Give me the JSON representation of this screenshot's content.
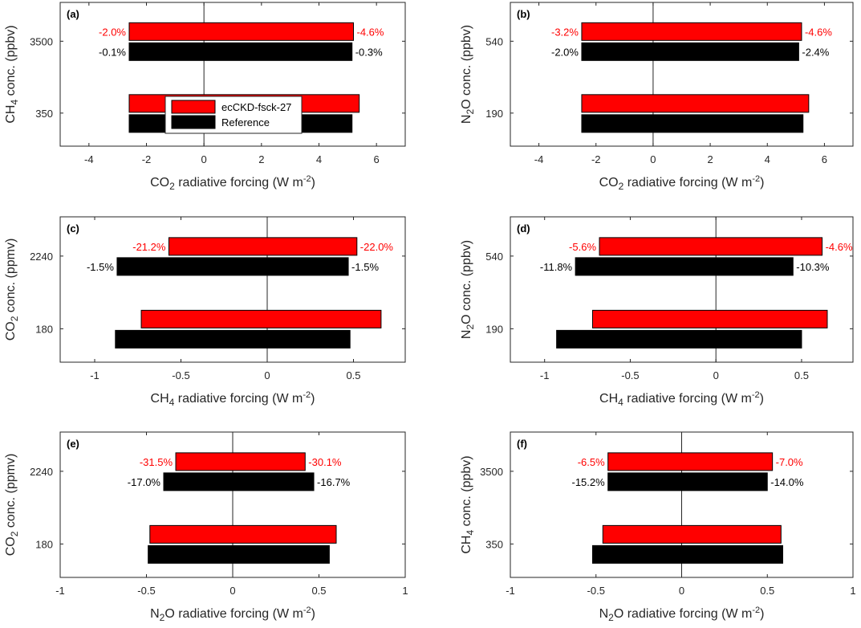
{
  "colors": {
    "ecckd": "#ff0000",
    "reference": "#000000",
    "pct_ecckd": "#ff0000",
    "pct_reference": "#000000"
  },
  "legend": {
    "entries": [
      "ecCKD-fsck-27",
      "Reference"
    ],
    "location": "panel-a-center"
  },
  "chart_data": [
    {
      "type": "bar",
      "orientation": "horizontal",
      "panel": "(a)",
      "xlabel": {
        "base": "CO",
        "sub": "2",
        "rest": " radiative forcing (W m",
        "sup": "-2",
        "end": ")"
      },
      "ylabel": {
        "base": "CH",
        "sub": "4",
        "rest": " conc. (ppbv)"
      },
      "xlim": [
        -5,
        7
      ],
      "xticks": [
        -4,
        -2,
        0,
        2,
        4,
        6
      ],
      "xtick_labels": [
        "-4",
        "-2",
        "0",
        "2",
        "4",
        "6"
      ],
      "categories": [
        "3500",
        "350"
      ],
      "series": [
        {
          "name": "ecCKD-fsck-27",
          "neg": [
            -2.6,
            -2.6
          ],
          "pos": [
            5.2,
            5.4
          ]
        },
        {
          "name": "Reference",
          "neg": [
            -2.6,
            -2.6
          ],
          "pos": [
            5.15,
            5.15
          ]
        }
      ],
      "annotations": [
        {
          "category": "3500",
          "series": "ecCKD-fsck-27",
          "left": "-2.0%",
          "right": "-4.6%"
        },
        {
          "category": "3500",
          "series": "Reference",
          "left": "-0.1%",
          "right": "-0.3%"
        }
      ]
    },
    {
      "type": "bar",
      "orientation": "horizontal",
      "panel": "(b)",
      "xlabel": {
        "base": "CO",
        "sub": "2",
        "rest": " radiative forcing (W m",
        "sup": "-2",
        "end": ")"
      },
      "ylabel": {
        "base": "N",
        "sub": "2",
        "rest": "O conc. (ppbv)"
      },
      "xlim": [
        -5,
        7
      ],
      "xticks": [
        -4,
        -2,
        0,
        2,
        4,
        6
      ],
      "xtick_labels": [
        "-4",
        "-2",
        "0",
        "2",
        "4",
        "6"
      ],
      "categories": [
        "540",
        "190"
      ],
      "series": [
        {
          "name": "ecCKD-fsck-27",
          "neg": [
            -2.5,
            -2.5
          ],
          "pos": [
            5.2,
            5.45
          ]
        },
        {
          "name": "Reference",
          "neg": [
            -2.5,
            -2.5
          ],
          "pos": [
            5.1,
            5.25
          ]
        }
      ],
      "annotations": [
        {
          "category": "540",
          "series": "ecCKD-fsck-27",
          "left": "-3.2%",
          "right": "-4.6%"
        },
        {
          "category": "540",
          "series": "Reference",
          "left": "-2.0%",
          "right": "-2.4%"
        }
      ]
    },
    {
      "type": "bar",
      "orientation": "horizontal",
      "panel": "(c)",
      "xlabel": {
        "base": "CH",
        "sub": "4",
        "rest": " radiative forcing (W m",
        "sup": "-2",
        "end": ")"
      },
      "ylabel": {
        "base": "CO",
        "sub": "2",
        "rest": " conc. (ppmv)"
      },
      "xlim": [
        -1.2,
        0.8
      ],
      "xticks": [
        -1,
        -0.5,
        0,
        0.5
      ],
      "xtick_labels": [
        "-1",
        "-0.5",
        "0",
        "0.5"
      ],
      "categories": [
        "2240",
        "180"
      ],
      "series": [
        {
          "name": "ecCKD-fsck-27",
          "neg": [
            -0.57,
            -0.73
          ],
          "pos": [
            0.52,
            0.66
          ]
        },
        {
          "name": "Reference",
          "neg": [
            -0.87,
            -0.88
          ],
          "pos": [
            0.47,
            0.48
          ]
        }
      ],
      "annotations": [
        {
          "category": "2240",
          "series": "ecCKD-fsck-27",
          "left": "-21.2%",
          "right": "-22.0%"
        },
        {
          "category": "2240",
          "series": "Reference",
          "left": "-1.5%",
          "right": "-1.5%"
        }
      ]
    },
    {
      "type": "bar",
      "orientation": "horizontal",
      "panel": "(d)",
      "xlabel": {
        "base": "CH",
        "sub": "4",
        "rest": " radiative forcing (W m",
        "sup": "-2",
        "end": ")"
      },
      "ylabel": {
        "base": "N",
        "sub": "2",
        "rest": "O conc. (ppbv)"
      },
      "xlim": [
        -1.2,
        0.8
      ],
      "xticks": [
        -1,
        -0.5,
        0,
        0.5
      ],
      "xtick_labels": [
        "-1",
        "-0.5",
        "0",
        "0.5"
      ],
      "categories": [
        "540",
        "190"
      ],
      "series": [
        {
          "name": "ecCKD-fsck-27",
          "neg": [
            -0.68,
            -0.72
          ],
          "pos": [
            0.62,
            0.65
          ]
        },
        {
          "name": "Reference",
          "neg": [
            -0.82,
            -0.93
          ],
          "pos": [
            0.45,
            0.5
          ]
        }
      ],
      "annotations": [
        {
          "category": "540",
          "series": "ecCKD-fsck-27",
          "left": "-5.6%",
          "right": "-4.6%"
        },
        {
          "category": "540",
          "series": "Reference",
          "left": "-11.8%",
          "right": "-10.3%"
        }
      ]
    },
    {
      "type": "bar",
      "orientation": "horizontal",
      "panel": "(e)",
      "xlabel": {
        "base": "N",
        "sub": "2",
        "rest": "O radiative forcing (W m",
        "sup": "-2",
        "end": ")"
      },
      "ylabel": {
        "base": "CO",
        "sub": "2",
        "rest": " conc. (ppmv)"
      },
      "xlim": [
        -1,
        1
      ],
      "xticks": [
        -1,
        -0.5,
        0,
        0.5,
        1
      ],
      "xtick_labels": [
        "-1",
        "-0.5",
        "0",
        "0.5",
        "1"
      ],
      "categories": [
        "2240",
        "180"
      ],
      "series": [
        {
          "name": "ecCKD-fsck-27",
          "neg": [
            -0.33,
            -0.48
          ],
          "pos": [
            0.42,
            0.6
          ]
        },
        {
          "name": "Reference",
          "neg": [
            -0.4,
            -0.49
          ],
          "pos": [
            0.47,
            0.56
          ]
        }
      ],
      "annotations": [
        {
          "category": "2240",
          "series": "ecCKD-fsck-27",
          "left": "-31.5%",
          "right": "-30.1%"
        },
        {
          "category": "2240",
          "series": "Reference",
          "left": "-17.0%",
          "right": "-16.7%"
        }
      ]
    },
    {
      "type": "bar",
      "orientation": "horizontal",
      "panel": "(f)",
      "xlabel": {
        "base": "N",
        "sub": "2",
        "rest": "O radiative forcing (W m",
        "sup": "-2",
        "end": ")"
      },
      "ylabel": {
        "base": "CH",
        "sub": "4",
        "rest": " conc. (ppbv)"
      },
      "xlim": [
        -1,
        1
      ],
      "xticks": [
        -1,
        -0.5,
        0,
        0.5,
        1
      ],
      "xtick_labels": [
        "-1",
        "-0.5",
        "0",
        "0.5",
        "1"
      ],
      "categories": [
        "3500",
        "350"
      ],
      "series": [
        {
          "name": "ecCKD-fsck-27",
          "neg": [
            -0.43,
            -0.46
          ],
          "pos": [
            0.53,
            0.58
          ]
        },
        {
          "name": "Reference",
          "neg": [
            -0.43,
            -0.52
          ],
          "pos": [
            0.5,
            0.59
          ]
        }
      ],
      "annotations": [
        {
          "category": "3500",
          "series": "ecCKD-fsck-27",
          "left": "-6.5%",
          "right": "-7.0%"
        },
        {
          "category": "3500",
          "series": "Reference",
          "left": "-15.2%",
          "right": "-14.0%"
        }
      ]
    }
  ]
}
